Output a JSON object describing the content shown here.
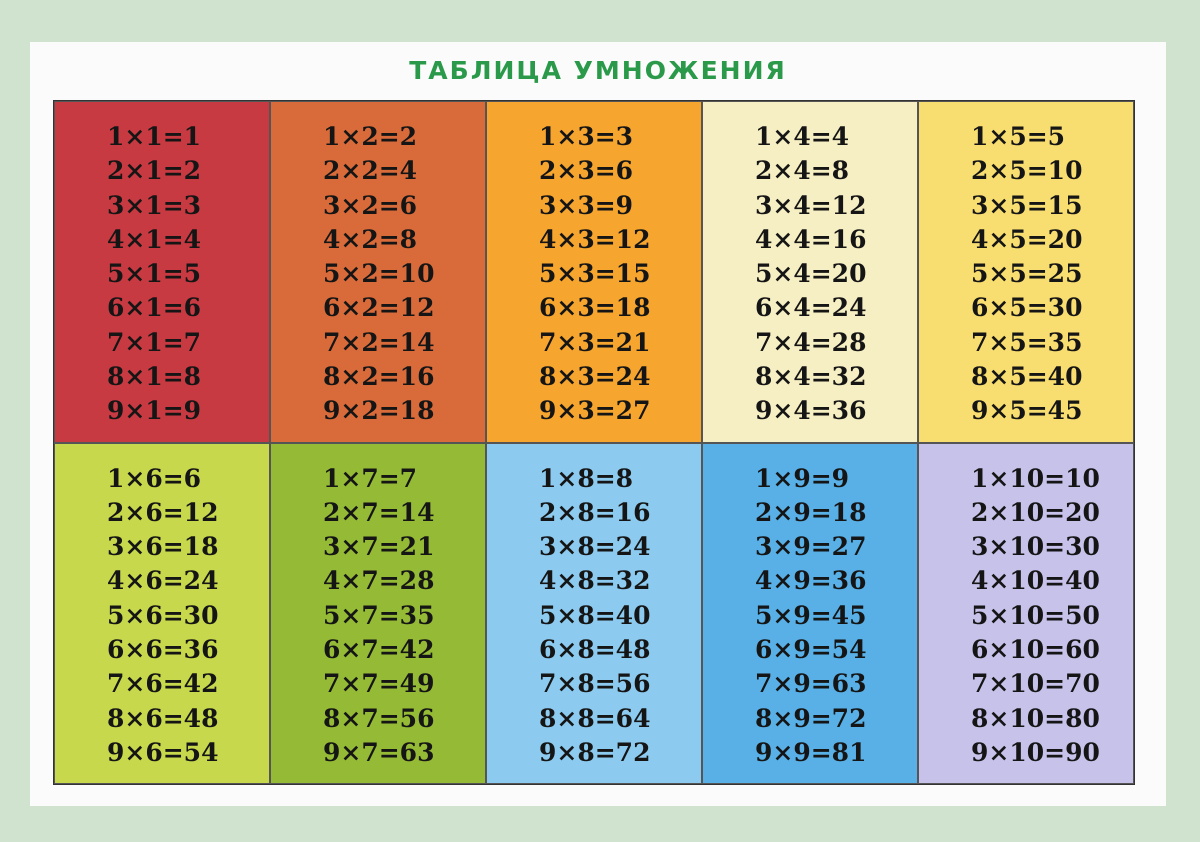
{
  "title": "ТАБЛИЦА УМНОЖЕНИЯ",
  "colors": [
    "#c83a42",
    "#d96b3b",
    "#f6a52f",
    "#f7efc4",
    "#f8dd70",
    "#c7d84c",
    "#95ba36",
    "#8ccaef",
    "#58b0e6",
    "#c6c2ea"
  ],
  "blocks": [
    {
      "lines": [
        "1×1=1",
        "2×1=2",
        "3×1=3",
        "4×1=4",
        "5×1=5",
        "6×1=6",
        "7×1=7",
        "8×1=8",
        "9×1=9"
      ]
    },
    {
      "lines": [
        "1×2=2",
        "2×2=4",
        "3×2=6",
        "4×2=8",
        "5×2=10",
        "6×2=12",
        "7×2=14",
        "8×2=16",
        "9×2=18"
      ]
    },
    {
      "lines": [
        "1×3=3",
        "2×3=6",
        "3×3=9",
        "4×3=12",
        "5×3=15",
        "6×3=18",
        "7×3=21",
        "8×3=24",
        "9×3=27"
      ]
    },
    {
      "lines": [
        "1×4=4",
        "2×4=8",
        "3×4=12",
        "4×4=16",
        "5×4=20",
        "6×4=24",
        "7×4=28",
        "8×4=32",
        "9×4=36"
      ]
    },
    {
      "lines": [
        "1×5=5",
        "2×5=10",
        "3×5=15",
        "4×5=20",
        "5×5=25",
        "6×5=30",
        "7×5=35",
        "8×5=40",
        "9×5=45"
      ]
    },
    {
      "lines": [
        "1×6=6",
        "2×6=12",
        "3×6=18",
        "4×6=24",
        "5×6=30",
        "6×6=36",
        "7×6=42",
        "8×6=48",
        "9×6=54"
      ]
    },
    {
      "lines": [
        "1×7=7",
        "2×7=14",
        "3×7=21",
        "4×7=28",
        "5×7=35",
        "6×7=42",
        "7×7=49",
        "8×7=56",
        "9×7=63"
      ]
    },
    {
      "lines": [
        "1×8=8",
        "2×8=16",
        "3×8=24",
        "4×8=32",
        "5×8=40",
        "6×8=48",
        "7×8=56",
        "8×8=64",
        "9×8=72"
      ]
    },
    {
      "lines": [
        "1×9=9",
        "2×9=18",
        "3×9=27",
        "4×9=36",
        "5×9=45",
        "6×9=54",
        "7×9=63",
        "8×9=72",
        "9×9=81"
      ]
    },
    {
      "lines": [
        "1×10=10",
        "2×10=20",
        "3×10=30",
        "4×10=40",
        "5×10=50",
        "6×10=60",
        "7×10=70",
        "8×10=80",
        "9×10=90"
      ]
    }
  ]
}
